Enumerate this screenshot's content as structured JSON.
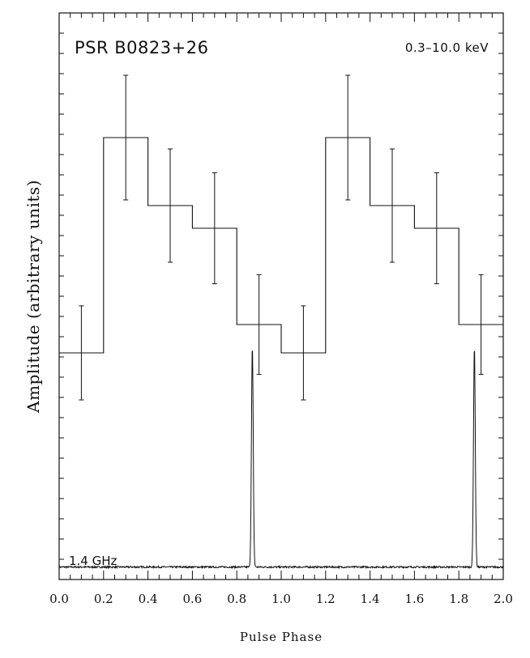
{
  "chart_data": {
    "type": "line",
    "title": "PSR B0823+26",
    "energy_band": "0.3–10.0 keV",
    "xlabel": "Pulse Phase",
    "ylabel": "Amplitude (arbitrary units)",
    "xlim": [
      0.0,
      2.0
    ],
    "ylim": [
      0.0,
      1.0
    ],
    "x_ticks": [
      "0.0",
      "0.2",
      "0.4",
      "0.6",
      "0.8",
      "1.0",
      "1.2",
      "1.4",
      "1.6",
      "1.8",
      "2.0"
    ],
    "grid": false,
    "series": [
      {
        "kind": "histogram-with-errors",
        "bin_width": 0.2,
        "phase_centers": [
          0.1,
          0.3,
          0.5,
          0.7,
          0.9,
          1.1,
          1.3,
          1.5,
          1.7,
          1.9
        ],
        "values": [
          0.4,
          0.78,
          0.66,
          0.62,
          0.45,
          0.4,
          0.78,
          0.66,
          0.62,
          0.45
        ],
        "errors": [
          0.083,
          0.11,
          0.1,
          0.098,
          0.088,
          0.083,
          0.11,
          0.1,
          0.098,
          0.088
        ]
      },
      {
        "name": "1.4 GHz",
        "kind": "radio-profile",
        "baseline": 0.022,
        "peak_phases": [
          0.87,
          1.87
        ],
        "peak_height": 0.39,
        "peak_width": 0.004
      }
    ]
  }
}
